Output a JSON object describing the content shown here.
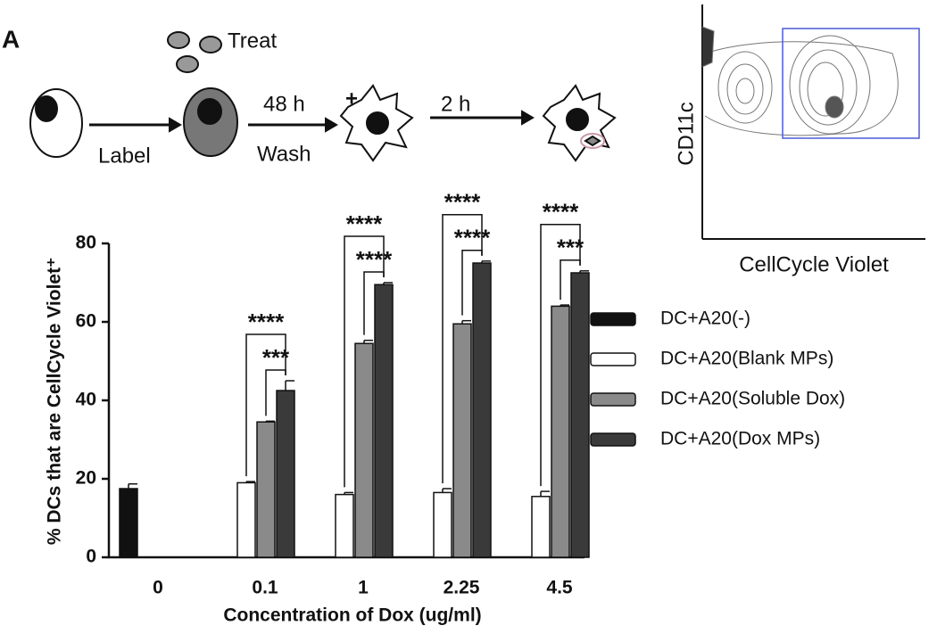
{
  "panel_label": "A",
  "schematic": {
    "steps": [
      "Treat",
      "Label",
      "48 h",
      "Wash",
      "2 h",
      "+"
    ]
  },
  "flow_plot": {
    "y_label": "CD11c",
    "x_label": "CellCycle Violet"
  },
  "chart_data": {
    "type": "bar",
    "x_label": "Concentration of Dox (ug/ml)",
    "y_label": "% DCs that are CellCycle Violet⁺",
    "categories": [
      "0",
      "0.1",
      "1",
      "2.25",
      "4.5"
    ],
    "series": [
      {
        "name": "DC+A20(-)",
        "color": "#111111",
        "values": [
          17.5,
          null,
          null,
          null,
          null
        ],
        "errors": [
          1.2,
          null,
          null,
          null,
          null
        ]
      },
      {
        "name": "DC+A20(Blank MPs)",
        "color": "#ffffff",
        "values": [
          null,
          19,
          16,
          16.5,
          15.5
        ],
        "errors": [
          null,
          0.3,
          0.5,
          1,
          1.3
        ]
      },
      {
        "name": "DC+A20(Soluble Dox)",
        "color": "#8a8a8a",
        "values": [
          null,
          34.5,
          54.5,
          59.5,
          64
        ],
        "errors": [
          null,
          0.2,
          0.8,
          0.8,
          0.3
        ]
      },
      {
        "name": "DC+A20(Dox MPs)",
        "color": "#3a3a3a",
        "values": [
          null,
          42.5,
          69.5,
          75,
          72.5
        ],
        "errors": [
          null,
          2.5,
          0.5,
          0.5,
          0.5
        ]
      }
    ],
    "annotations": [
      {
        "text": "****",
        "category": "0.1",
        "from": "DC+A20(Blank MPs)",
        "to": "DC+A20(Dox MPs)"
      },
      {
        "text": "***",
        "category": "0.1",
        "from": "DC+A20(Soluble Dox)",
        "to": "DC+A20(Dox MPs)"
      },
      {
        "text": "****",
        "category": "1",
        "from": "DC+A20(Blank MPs)",
        "to": "DC+A20(Dox MPs)"
      },
      {
        "text": "****",
        "category": "1",
        "from": "DC+A20(Soluble Dox)",
        "to": "DC+A20(Dox MPs)"
      },
      {
        "text": "****",
        "category": "2.25",
        "from": "DC+A20(Blank MPs)",
        "to": "DC+A20(Dox MPs)"
      },
      {
        "text": "****",
        "category": "2.25",
        "from": "DC+A20(Soluble Dox)",
        "to": "DC+A20(Dox MPs)"
      },
      {
        "text": "****",
        "category": "4.5",
        "from": "DC+A20(Blank MPs)",
        "to": "DC+A20(Dox MPs)"
      },
      {
        "text": "***",
        "category": "4.5",
        "from": "DC+A20(Soluble Dox)",
        "to": "DC+A20(Dox MPs)"
      }
    ],
    "ylim": [
      0,
      80
    ],
    "yticks": [
      0,
      20,
      40,
      60,
      80
    ],
    "legend": "right"
  }
}
